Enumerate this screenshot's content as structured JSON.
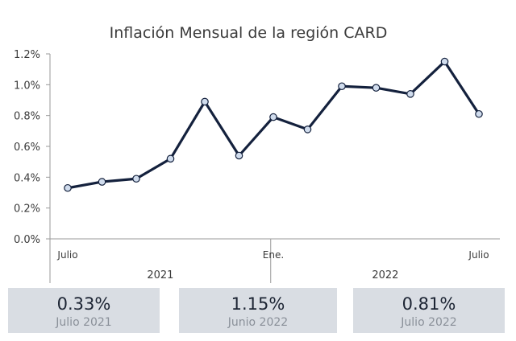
{
  "chart_data": {
    "type": "line",
    "title": "Inflación Mensual de la región CARD",
    "x": [
      "2021-07",
      "2021-08",
      "2021-09",
      "2021-10",
      "2021-11",
      "2021-12",
      "2022-01",
      "2022-02",
      "2022-03",
      "2022-04",
      "2022-05",
      "2022-06",
      "2022-07"
    ],
    "series": [
      {
        "values": [
          0.33,
          0.37,
          0.39,
          0.52,
          0.89,
          0.54,
          0.79,
          0.71,
          0.99,
          0.98,
          0.94,
          1.15,
          0.81
        ]
      }
    ],
    "ylim": [
      0,
      1.2
    ],
    "y_ticks": [
      "0.0%",
      "0.2%",
      "0.4%",
      "0.6%",
      "0.8%",
      "1.0%",
      "1.2%"
    ],
    "x_tick_labels": [
      {
        "index": 0,
        "text": "Julio"
      },
      {
        "index": 6,
        "text": "Ene."
      },
      {
        "index": 12,
        "text": "Julio"
      }
    ],
    "year_labels": [
      "2021",
      "2022"
    ],
    "grid": false,
    "line_color": "#14213d",
    "marker_fill": "#d0dced"
  },
  "cards": [
    {
      "value": "0.33%",
      "label": "Julio 2021"
    },
    {
      "value": "1.15%",
      "label": "Junio 2022"
    },
    {
      "value": "0.81%",
      "label": "Julio 2022"
    }
  ]
}
